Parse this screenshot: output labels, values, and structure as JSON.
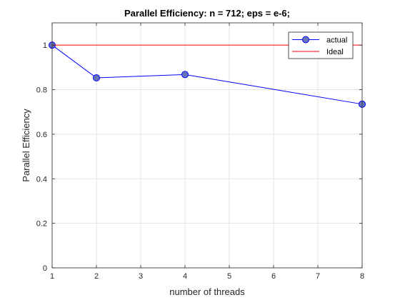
{
  "chart_data": {
    "type": "line",
    "title": "Parallel Efficiency: n = 712; eps = e-6;",
    "xlabel": "number of threads",
    "ylabel": "Parallel Efficiency",
    "xlim": [
      1,
      8
    ],
    "ylim": [
      0,
      1.1
    ],
    "xticks": [
      1,
      2,
      3,
      4,
      5,
      6,
      7,
      8
    ],
    "yticks": [
      0,
      0.2,
      0.4,
      0.6,
      0.8,
      1
    ],
    "xtick_labels": [
      "1",
      "2",
      "3",
      "4",
      "5",
      "6",
      "7",
      "8"
    ],
    "ytick_labels": [
      "0",
      "0.2",
      "0.4",
      "0.6",
      "0.8",
      "1"
    ],
    "grid": true,
    "legend_position": "top-right",
    "series": [
      {
        "name": "actual",
        "x": [
          1,
          2,
          4,
          8
        ],
        "y": [
          1.0,
          0.853,
          0.868,
          0.735
        ],
        "color": "#0000ff",
        "marker_fill": "#6a74b8",
        "marker": "circle"
      },
      {
        "name": "Ideal",
        "x": [
          1,
          8
        ],
        "y": [
          1.0,
          1.0
        ],
        "color": "#ff0000",
        "marker": "none"
      }
    ]
  }
}
